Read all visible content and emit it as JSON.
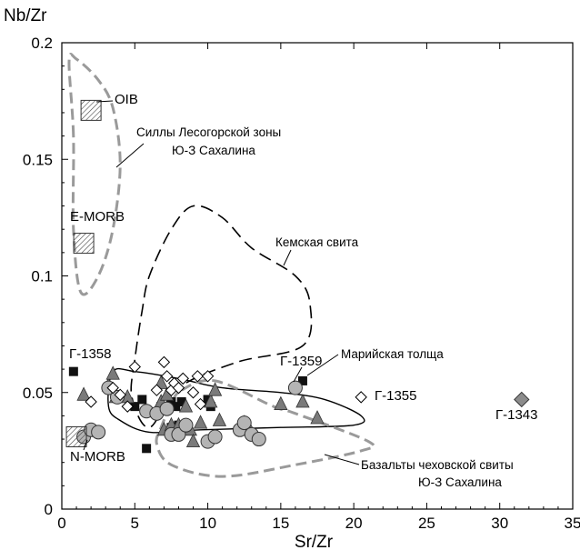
{
  "chart_data": {
    "type": "scatter",
    "xlabel": "Sr/Zr",
    "ylabel": "Nb/Zr",
    "xlim": [
      0,
      35
    ],
    "ylim": [
      0,
      0.2
    ],
    "x_ticks": [
      "0",
      "5",
      "10",
      "15",
      "20",
      "25",
      "30",
      "35"
    ],
    "y_ticks": [
      "0",
      "0.05",
      "0.1",
      "0.15",
      "0.2"
    ],
    "x_tick_values": [
      0,
      5,
      10,
      15,
      20,
      25,
      30,
      35
    ],
    "y_tick_values": [
      0,
      0.05,
      0.1,
      0.15,
      0.2
    ],
    "grid": false,
    "series": [
      {
        "marker": "filled-square",
        "color": "#111111",
        "points": [
          [
            0.8,
            0.059
          ],
          [
            5,
            0.044
          ],
          [
            5.5,
            0.047
          ],
          [
            5.8,
            0.026
          ],
          [
            6.8,
            0.044
          ],
          [
            7.5,
            0.035
          ],
          [
            7.5,
            0.046
          ],
          [
            7.8,
            0.044
          ],
          [
            8,
            0.036
          ],
          [
            8.2,
            0.046
          ],
          [
            10,
            0.047
          ],
          [
            10.2,
            0.044
          ],
          [
            16.5,
            0.055
          ]
        ]
      },
      {
        "marker": "filled-triangle",
        "color": "#7a7a7a",
        "points": [
          [
            1.5,
            0.049
          ],
          [
            3.2,
            0.053
          ],
          [
            3.5,
            0.058
          ],
          [
            3.7,
            0.048
          ],
          [
            4.5,
            0.048
          ],
          [
            6.8,
            0.054
          ],
          [
            6.8,
            0.046
          ],
          [
            7,
            0.034
          ],
          [
            7.2,
            0.049
          ],
          [
            7.5,
            0.036
          ],
          [
            8,
            0.036
          ],
          [
            8.5,
            0.044
          ],
          [
            8.8,
            0.034
          ],
          [
            9,
            0.029
          ],
          [
            9.5,
            0.037
          ],
          [
            10.2,
            0.046
          ],
          [
            10.5,
            0.051
          ],
          [
            10.8,
            0.038
          ],
          [
            12.5,
            0.037
          ],
          [
            12.8,
            0.035
          ],
          [
            15,
            0.045
          ],
          [
            16.5,
            0.046
          ],
          [
            17.5,
            0.039
          ]
        ]
      },
      {
        "marker": "filled-circle",
        "color": "#b4b4b4",
        "points": [
          [
            1.5,
            0.031
          ],
          [
            2,
            0.034
          ],
          [
            2.5,
            0.033
          ],
          [
            3.2,
            0.052
          ],
          [
            3.8,
            0.048
          ],
          [
            5.8,
            0.042
          ],
          [
            6.5,
            0.041
          ],
          [
            7.2,
            0.043
          ],
          [
            7.5,
            0.032
          ],
          [
            8,
            0.032
          ],
          [
            8.5,
            0.036
          ],
          [
            10,
            0.029
          ],
          [
            10.5,
            0.031
          ],
          [
            12.2,
            0.034
          ],
          [
            12.5,
            0.037
          ],
          [
            13,
            0.032
          ],
          [
            13.5,
            0.03
          ],
          [
            16,
            0.052
          ]
        ]
      },
      {
        "marker": "open-diamond",
        "color": "#ffffff",
        "points": [
          [
            2,
            0.046
          ],
          [
            3.5,
            0.052
          ],
          [
            4,
            0.049
          ],
          [
            4.5,
            0.044
          ],
          [
            5,
            0.061
          ],
          [
            6.5,
            0.051
          ],
          [
            7,
            0.063
          ],
          [
            7.2,
            0.057
          ],
          [
            7.5,
            0.051
          ],
          [
            7.7,
            0.054
          ],
          [
            8,
            0.052
          ],
          [
            8.3,
            0.056
          ],
          [
            9,
            0.05
          ],
          [
            9.3,
            0.057
          ],
          [
            9.5,
            0.045
          ],
          [
            10,
            0.057
          ],
          [
            20.5,
            0.048
          ]
        ]
      },
      {
        "marker": "filled-diamond",
        "color": "#8c8c8c",
        "points": [
          [
            31.5,
            0.047
          ]
        ]
      },
      {
        "marker": "hatched-square",
        "color": "#ffffff",
        "points": [
          [
            2,
            0.171
          ],
          [
            1.5,
            0.114
          ],
          [
            1,
            0.031
          ]
        ]
      }
    ],
    "fields": [
      {
        "style": "gray-dashed",
        "points": [
          [
            0.8,
            0.16
          ],
          [
            0.5,
            0.192
          ],
          [
            1,
            0.193
          ],
          [
            2.5,
            0.184
          ],
          [
            3.5,
            0.172
          ],
          [
            4,
            0.148
          ],
          [
            3.5,
            0.12
          ],
          [
            2.5,
            0.1
          ],
          [
            1.3,
            0.093
          ],
          [
            0.8,
            0.12
          ]
        ]
      },
      {
        "style": "black-dashed",
        "points": [
          [
            5,
            0.064
          ],
          [
            4.8,
            0.048
          ],
          [
            6,
            0.035
          ],
          [
            8,
            0.052
          ],
          [
            12,
            0.063
          ],
          [
            16.5,
            0.07
          ],
          [
            17,
            0.088
          ],
          [
            16,
            0.1
          ],
          [
            13,
            0.112
          ],
          [
            11,
            0.125
          ],
          [
            9,
            0.13
          ],
          [
            7.5,
            0.12
          ],
          [
            6,
            0.1
          ],
          [
            5.5,
            0.085
          ]
        ]
      },
      {
        "style": "black-solid",
        "points": [
          [
            3.5,
            0.059
          ],
          [
            5,
            0.059
          ],
          [
            8,
            0.056
          ],
          [
            11,
            0.052
          ],
          [
            15,
            0.05
          ],
          [
            18,
            0.047
          ],
          [
            20.5,
            0.04
          ],
          [
            20,
            0.036
          ],
          [
            15,
            0.035
          ],
          [
            9.5,
            0.034
          ],
          [
            6,
            0.033
          ],
          [
            4,
            0.038
          ],
          [
            3.2,
            0.044
          ]
        ]
      },
      {
        "style": "gray-dashed",
        "points": [
          [
            8.2,
            0.051
          ],
          [
            10.5,
            0.055
          ],
          [
            14.5,
            0.044
          ],
          [
            16,
            0.041
          ],
          [
            21,
            0.029
          ],
          [
            20.5,
            0.025
          ],
          [
            16,
            0.019
          ],
          [
            11,
            0.014
          ],
          [
            7.5,
            0.019
          ],
          [
            6.5,
            0.028
          ],
          [
            6.8,
            0.035
          ],
          [
            7.5,
            0.045
          ]
        ]
      }
    ]
  },
  "annotations": {
    "oib": "OIB",
    "emorb": "E-MORB",
    "nmorb": "N-MORB",
    "sills_line1": "Силлы Лесогорской зоны",
    "sills_line2": "Ю-З Сахалина",
    "kemskaya": "Кемская свита",
    "mariyskaya": "Марийская толща",
    "basalts_line1": "Базальты чеховской свиты",
    "basalts_line2": "Ю-З Сахалина",
    "g1358": "Г-1358",
    "g1359": "Г-1359",
    "g1355": "Г-1355",
    "g1343": "Г-1343"
  }
}
